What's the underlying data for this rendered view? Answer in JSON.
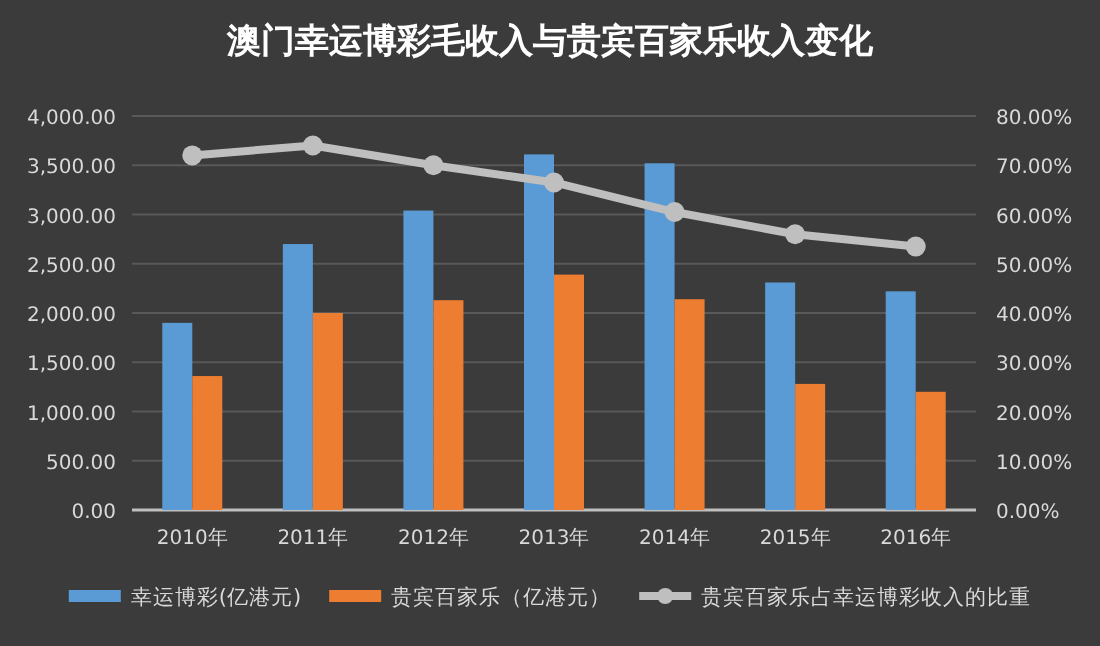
{
  "chart_data": {
    "type": "bar",
    "title": "澳门幸运博彩毛收入与贵宾百家乐收入变化",
    "categories": [
      "2010年",
      "2011年",
      "2012年",
      "2013年",
      "2014年",
      "2015年",
      "2016年"
    ],
    "series": [
      {
        "name": "幸运博彩(亿港元)",
        "color": "#5b9bd5",
        "values": [
          1900,
          2700,
          3040,
          3610,
          3520,
          2310,
          2220
        ]
      },
      {
        "name": "贵宾百家乐（亿港元）",
        "color": "#ed7d31",
        "values": [
          1360,
          2000,
          2130,
          2390,
          2140,
          1280,
          1200
        ]
      },
      {
        "name": "贵宾百家乐占幸运博彩收入的比重",
        "type": "line",
        "axis": "y2",
        "color": "#bfbfbf",
        "marker": "circle",
        "values": [
          72,
          74,
          70,
          66.5,
          60.5,
          56,
          53.5
        ]
      }
    ],
    "ylim": [
      0,
      4000
    ],
    "yticks": [
      {
        "value": 0,
        "label": "0.00"
      },
      {
        "value": 500,
        "label": "500.00"
      },
      {
        "value": 1000,
        "label": "1,000.00"
      },
      {
        "value": 1500,
        "label": "1,500.00"
      },
      {
        "value": 2000,
        "label": "2,000.00"
      },
      {
        "value": 2500,
        "label": "2,500.00"
      },
      {
        "value": 3000,
        "label": "3,000.00"
      },
      {
        "value": 3500,
        "label": "3,500.00"
      },
      {
        "value": 4000,
        "label": "4,000.00"
      }
    ],
    "y2lim": [
      0,
      80
    ],
    "y2ticks": [
      {
        "value": 0,
        "label": "0.00%"
      },
      {
        "value": 10,
        "label": "10.00%"
      },
      {
        "value": 20,
        "label": "20.00%"
      },
      {
        "value": 30,
        "label": "30.00%"
      },
      {
        "value": 40,
        "label": "40.00%"
      },
      {
        "value": 50,
        "label": "50.00%"
      },
      {
        "value": 60,
        "label": "60.00%"
      },
      {
        "value": 70,
        "label": "70.00%"
      },
      {
        "value": 80,
        "label": "80.00%"
      }
    ],
    "grid": "y",
    "legend": "bottom"
  }
}
